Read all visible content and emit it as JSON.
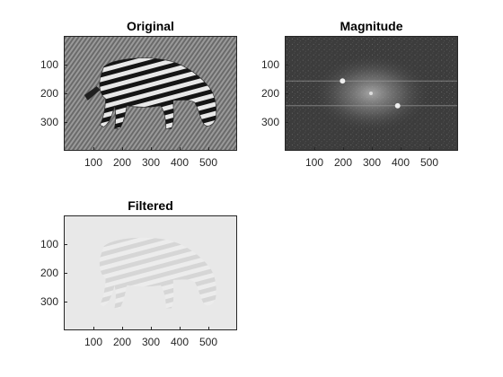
{
  "figure": {
    "panels": [
      {
        "title": "Original",
        "image": "zebra-grayscale-with-periodic-noise",
        "xticks": [
          "100",
          "200",
          "300",
          "400",
          "500"
        ],
        "yticks": [
          "100",
          "200",
          "300"
        ]
      },
      {
        "title": "Magnitude",
        "image": "fft-log-magnitude-spectrum",
        "xticks": [
          "100",
          "200",
          "300",
          "400",
          "500"
        ],
        "yticks": [
          "100",
          "200",
          "300"
        ]
      },
      {
        "title": "Filtered",
        "image": "zebra-after-notch-filter",
        "xticks": [
          "100",
          "200",
          "300",
          "400",
          "500"
        ],
        "yticks": [
          "100",
          "200",
          "300"
        ]
      }
    ],
    "colors": {
      "original_bg": "#8a8a8a",
      "magnitude_bg": "#3f3f3f",
      "filtered_bg": "#e6e6e6"
    }
  }
}
